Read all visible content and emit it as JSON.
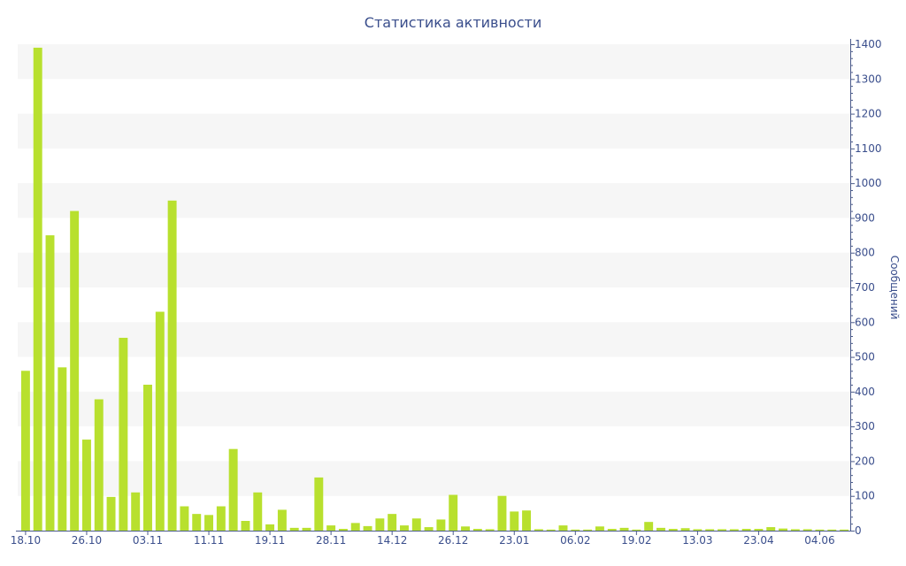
{
  "colors": {
    "bar": "#b8e02e",
    "axis": "#4a5a8a",
    "band": "#f6f6f6",
    "text": "#3a4e8c"
  },
  "chart_data": {
    "type": "bar",
    "title": "Статистика активности",
    "xlabel": "",
    "ylabel": "Сообщений",
    "y_axis_side": "right",
    "ylim": [
      0,
      1400
    ],
    "y_ticks": [
      0,
      100,
      200,
      300,
      400,
      500,
      600,
      700,
      800,
      900,
      1000,
      1100,
      1200,
      1300,
      1400
    ],
    "grid": "alternating horizontal bands",
    "x_tick_labels": [
      {
        "label": "18.10",
        "index": 0
      },
      {
        "label": "26.10",
        "index": 5
      },
      {
        "label": "03.11",
        "index": 10
      },
      {
        "label": "11.11",
        "index": 15
      },
      {
        "label": "19.11",
        "index": 20
      },
      {
        "label": "28.11",
        "index": 25
      },
      {
        "label": "14.12",
        "index": 30
      },
      {
        "label": "26.12",
        "index": 35
      },
      {
        "label": "23.01",
        "index": 40
      },
      {
        "label": "06.02",
        "index": 45
      },
      {
        "label": "19.02",
        "index": 50
      },
      {
        "label": "13.03",
        "index": 55
      },
      {
        "label": "23.04",
        "index": 60
      },
      {
        "label": "04.06",
        "index": 65
      }
    ],
    "values": [
      460,
      1390,
      850,
      470,
      920,
      262,
      378,
      97,
      555,
      110,
      420,
      630,
      950,
      70,
      48,
      45,
      70,
      235,
      28,
      110,
      18,
      60,
      8,
      8,
      153,
      15,
      5,
      22,
      13,
      35,
      48,
      15,
      35,
      10,
      32,
      103,
      12,
      5,
      4,
      100,
      55,
      58,
      4,
      3,
      15,
      3,
      3,
      12,
      5,
      8,
      3,
      25,
      8,
      5,
      7,
      4,
      4,
      4,
      4,
      5,
      5,
      10,
      6,
      4,
      4,
      3,
      3,
      3
    ]
  }
}
